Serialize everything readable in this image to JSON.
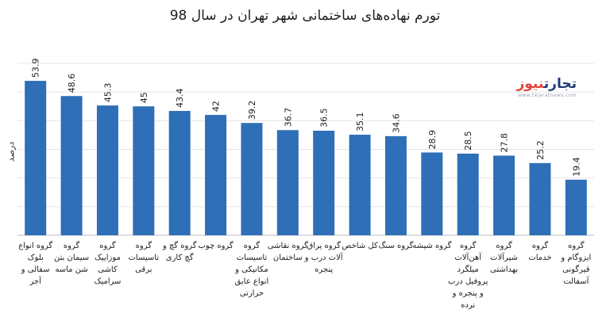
{
  "title": "تورم نهاده‌های ساختمانی شهر تهران در سال 98",
  "logo": {
    "brand_part1": "تجارت",
    "brand_part2": "نیوز",
    "website": "www.tejaratnews.com"
  },
  "chart_data": {
    "type": "bar",
    "title": "تورم نهاده‌های ساختمانی شهر تهران در سال 98",
    "ylabel": "درصد",
    "xlabel": "",
    "ylim": [
      0,
      60
    ],
    "grid": true,
    "bar_color": "#2e6fb7",
    "categories": [
      "گروه انواع بلوک سفالی و آجر",
      "گروه سیمان بتن شن ماسه",
      "گروه موزاییک کاشی سرامیک",
      "گروه تاسیسات برقی",
      "گروه گچ و گچ کاری",
      "گروه چوب",
      "گروه تاسیسات مکانیکی و انواع عایق حرارتی",
      "گروه نقاشی ساختمان",
      "گروه یراق آلات درب و پنجره",
      "کل شاخص",
      "گروه سنگ",
      "گروه شیشه",
      "گروه آهن‌آلات میلگرد پروفیل درب و پنجره و نرده",
      "گروه شیرآلات بهداشتی",
      "گروه خدمات",
      "گروه ایزوگام و قیرگونی آسفالت"
    ],
    "category_lines": [
      [
        "گروه انواع",
        "بلوک",
        "سفالی و",
        "آجر"
      ],
      [
        "گروه",
        "سیمان بتن",
        "شن ماسه"
      ],
      [
        "گروه",
        "موزاییک",
        "کاشی",
        "سرامیک"
      ],
      [
        "گروه",
        "تاسیسات",
        "برقی"
      ],
      [
        "گروه گچ و",
        "گچ کاری"
      ],
      [
        "گروه چوب"
      ],
      [
        "گروه",
        "تاسیسات",
        "مکانیکی و",
        "انواع عایق",
        "حرارتی"
      ],
      [
        "گروه نقاشی",
        "ساختمان"
      ],
      [
        "گروه یراق",
        "آلات درب و",
        "پنجره"
      ],
      [
        "کل شاخص"
      ],
      [
        "گروه سنگ"
      ],
      [
        "گروه شیشه"
      ],
      [
        "گروه",
        "آهن‌آلات",
        "میلگرد",
        "پروفیل درب",
        "و پنجره و",
        "نرده"
      ],
      [
        "گروه",
        "شیرآلات",
        "بهداشتی"
      ],
      [
        "گروه",
        "خدمات"
      ],
      [
        "گروه",
        "ایزوگام و",
        "قیرگونی",
        "آسفالت"
      ]
    ],
    "values": [
      53.9,
      48.6,
      45.3,
      45,
      43.4,
      42,
      39.2,
      36.7,
      36.5,
      35.1,
      34.6,
      28.9,
      28.5,
      27.8,
      25.2,
      19.4
    ]
  }
}
